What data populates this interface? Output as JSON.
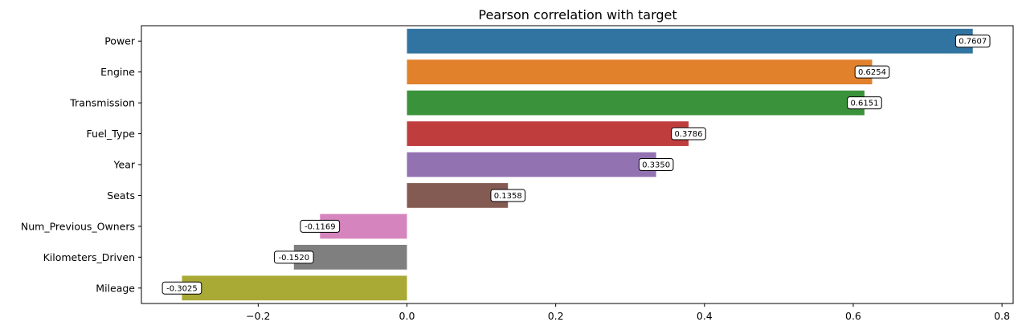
{
  "chart_data": {
    "type": "bar",
    "orientation": "horizontal",
    "title": "Pearson correlation with target",
    "xlabel": "",
    "ylabel": "",
    "xlim": [
      -0.357,
      0.815
    ],
    "xticks": [
      -0.2,
      0.0,
      0.2,
      0.4,
      0.6,
      0.8
    ],
    "xtick_labels": [
      "−0.2",
      "0.0",
      "0.2",
      "0.4",
      "0.6",
      "0.8"
    ],
    "grid": false,
    "categories": [
      "Power",
      "Engine",
      "Transmission",
      "Fuel_Type",
      "Year",
      "Seats",
      "Num_Previous_Owners",
      "Kilometers_Driven",
      "Mileage"
    ],
    "values": [
      0.7607,
      0.6254,
      0.6151,
      0.3786,
      0.335,
      0.1358,
      -0.1169,
      -0.152,
      -0.3025
    ],
    "data_labels": [
      "0.7607",
      "0.6254",
      "0.6151",
      "0.3786",
      "0.3350",
      "0.1358",
      "-0.1169",
      "-0.1520",
      "-0.3025"
    ],
    "colors": [
      "#3274a1",
      "#e1812c",
      "#3a923a",
      "#c03d3e",
      "#9372b2",
      "#845b53",
      "#d684bd",
      "#7f7f7f",
      "#a9aa35"
    ]
  }
}
